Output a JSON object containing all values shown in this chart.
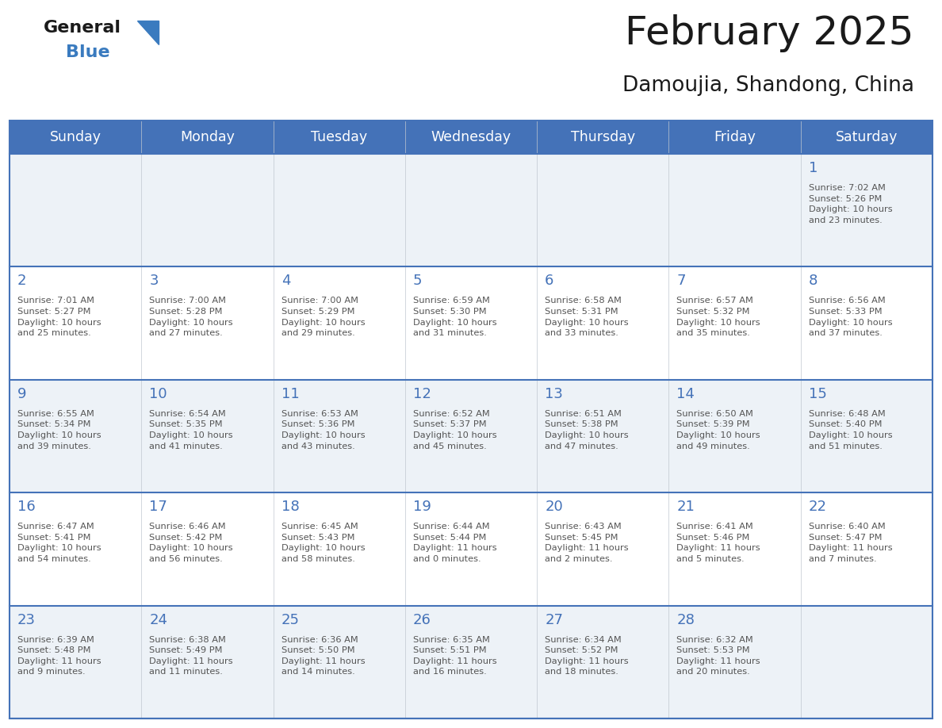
{
  "title": "February 2025",
  "subtitle": "Damoujia, Shandong, China",
  "header_bg_color": "#4472b8",
  "header_text_color": "#ffffff",
  "cell_bg_even": "#edf2f7",
  "cell_bg_odd": "#ffffff",
  "row_divider_color": "#4472b8",
  "outer_border_color": "#4472b8",
  "day_text_color": "#4472b8",
  "detail_text_color": "#555555",
  "days_of_week": [
    "Sunday",
    "Monday",
    "Tuesday",
    "Wednesday",
    "Thursday",
    "Friday",
    "Saturday"
  ],
  "calendar_data": [
    [
      null,
      null,
      null,
      null,
      null,
      null,
      {
        "day": "1",
        "sunrise": "7:02 AM",
        "sunset": "5:26 PM",
        "daylight": "10 hours",
        "daylight2": "and 23 minutes."
      }
    ],
    [
      {
        "day": "2",
        "sunrise": "7:01 AM",
        "sunset": "5:27 PM",
        "daylight": "10 hours",
        "daylight2": "and 25 minutes."
      },
      {
        "day": "3",
        "sunrise": "7:00 AM",
        "sunset": "5:28 PM",
        "daylight": "10 hours",
        "daylight2": "and 27 minutes."
      },
      {
        "day": "4",
        "sunrise": "7:00 AM",
        "sunset": "5:29 PM",
        "daylight": "10 hours",
        "daylight2": "and 29 minutes."
      },
      {
        "day": "5",
        "sunrise": "6:59 AM",
        "sunset": "5:30 PM",
        "daylight": "10 hours",
        "daylight2": "and 31 minutes."
      },
      {
        "day": "6",
        "sunrise": "6:58 AM",
        "sunset": "5:31 PM",
        "daylight": "10 hours",
        "daylight2": "and 33 minutes."
      },
      {
        "day": "7",
        "sunrise": "6:57 AM",
        "sunset": "5:32 PM",
        "daylight": "10 hours",
        "daylight2": "and 35 minutes."
      },
      {
        "day": "8",
        "sunrise": "6:56 AM",
        "sunset": "5:33 PM",
        "daylight": "10 hours",
        "daylight2": "and 37 minutes."
      }
    ],
    [
      {
        "day": "9",
        "sunrise": "6:55 AM",
        "sunset": "5:34 PM",
        "daylight": "10 hours",
        "daylight2": "and 39 minutes."
      },
      {
        "day": "10",
        "sunrise": "6:54 AM",
        "sunset": "5:35 PM",
        "daylight": "10 hours",
        "daylight2": "and 41 minutes."
      },
      {
        "day": "11",
        "sunrise": "6:53 AM",
        "sunset": "5:36 PM",
        "daylight": "10 hours",
        "daylight2": "and 43 minutes."
      },
      {
        "day": "12",
        "sunrise": "6:52 AM",
        "sunset": "5:37 PM",
        "daylight": "10 hours",
        "daylight2": "and 45 minutes."
      },
      {
        "day": "13",
        "sunrise": "6:51 AM",
        "sunset": "5:38 PM",
        "daylight": "10 hours",
        "daylight2": "and 47 minutes."
      },
      {
        "day": "14",
        "sunrise": "6:50 AM",
        "sunset": "5:39 PM",
        "daylight": "10 hours",
        "daylight2": "and 49 minutes."
      },
      {
        "day": "15",
        "sunrise": "6:48 AM",
        "sunset": "5:40 PM",
        "daylight": "10 hours",
        "daylight2": "and 51 minutes."
      }
    ],
    [
      {
        "day": "16",
        "sunrise": "6:47 AM",
        "sunset": "5:41 PM",
        "daylight": "10 hours",
        "daylight2": "and 54 minutes."
      },
      {
        "day": "17",
        "sunrise": "6:46 AM",
        "sunset": "5:42 PM",
        "daylight": "10 hours",
        "daylight2": "and 56 minutes."
      },
      {
        "day": "18",
        "sunrise": "6:45 AM",
        "sunset": "5:43 PM",
        "daylight": "10 hours",
        "daylight2": "and 58 minutes."
      },
      {
        "day": "19",
        "sunrise": "6:44 AM",
        "sunset": "5:44 PM",
        "daylight": "11 hours",
        "daylight2": "and 0 minutes."
      },
      {
        "day": "20",
        "sunrise": "6:43 AM",
        "sunset": "5:45 PM",
        "daylight": "11 hours",
        "daylight2": "and 2 minutes."
      },
      {
        "day": "21",
        "sunrise": "6:41 AM",
        "sunset": "5:46 PM",
        "daylight": "11 hours",
        "daylight2": "and 5 minutes."
      },
      {
        "day": "22",
        "sunrise": "6:40 AM",
        "sunset": "5:47 PM",
        "daylight": "11 hours",
        "daylight2": "and 7 minutes."
      }
    ],
    [
      {
        "day": "23",
        "sunrise": "6:39 AM",
        "sunset": "5:48 PM",
        "daylight": "11 hours",
        "daylight2": "and 9 minutes."
      },
      {
        "day": "24",
        "sunrise": "6:38 AM",
        "sunset": "5:49 PM",
        "daylight": "11 hours",
        "daylight2": "and 11 minutes."
      },
      {
        "day": "25",
        "sunrise": "6:36 AM",
        "sunset": "5:50 PM",
        "daylight": "11 hours",
        "daylight2": "and 14 minutes."
      },
      {
        "day": "26",
        "sunrise": "6:35 AM",
        "sunset": "5:51 PM",
        "daylight": "11 hours",
        "daylight2": "and 16 minutes."
      },
      {
        "day": "27",
        "sunrise": "6:34 AM",
        "sunset": "5:52 PM",
        "daylight": "11 hours",
        "daylight2": "and 18 minutes."
      },
      {
        "day": "28",
        "sunrise": "6:32 AM",
        "sunset": "5:53 PM",
        "daylight": "11 hours",
        "daylight2": "and 20 minutes."
      },
      null
    ]
  ],
  "logo_color_general": "#1a1a1a",
  "logo_color_blue": "#3a7bbf",
  "logo_triangle_color": "#3a7bbf",
  "title_color": "#1a1a1a",
  "subtitle_color": "#1a1a1a"
}
